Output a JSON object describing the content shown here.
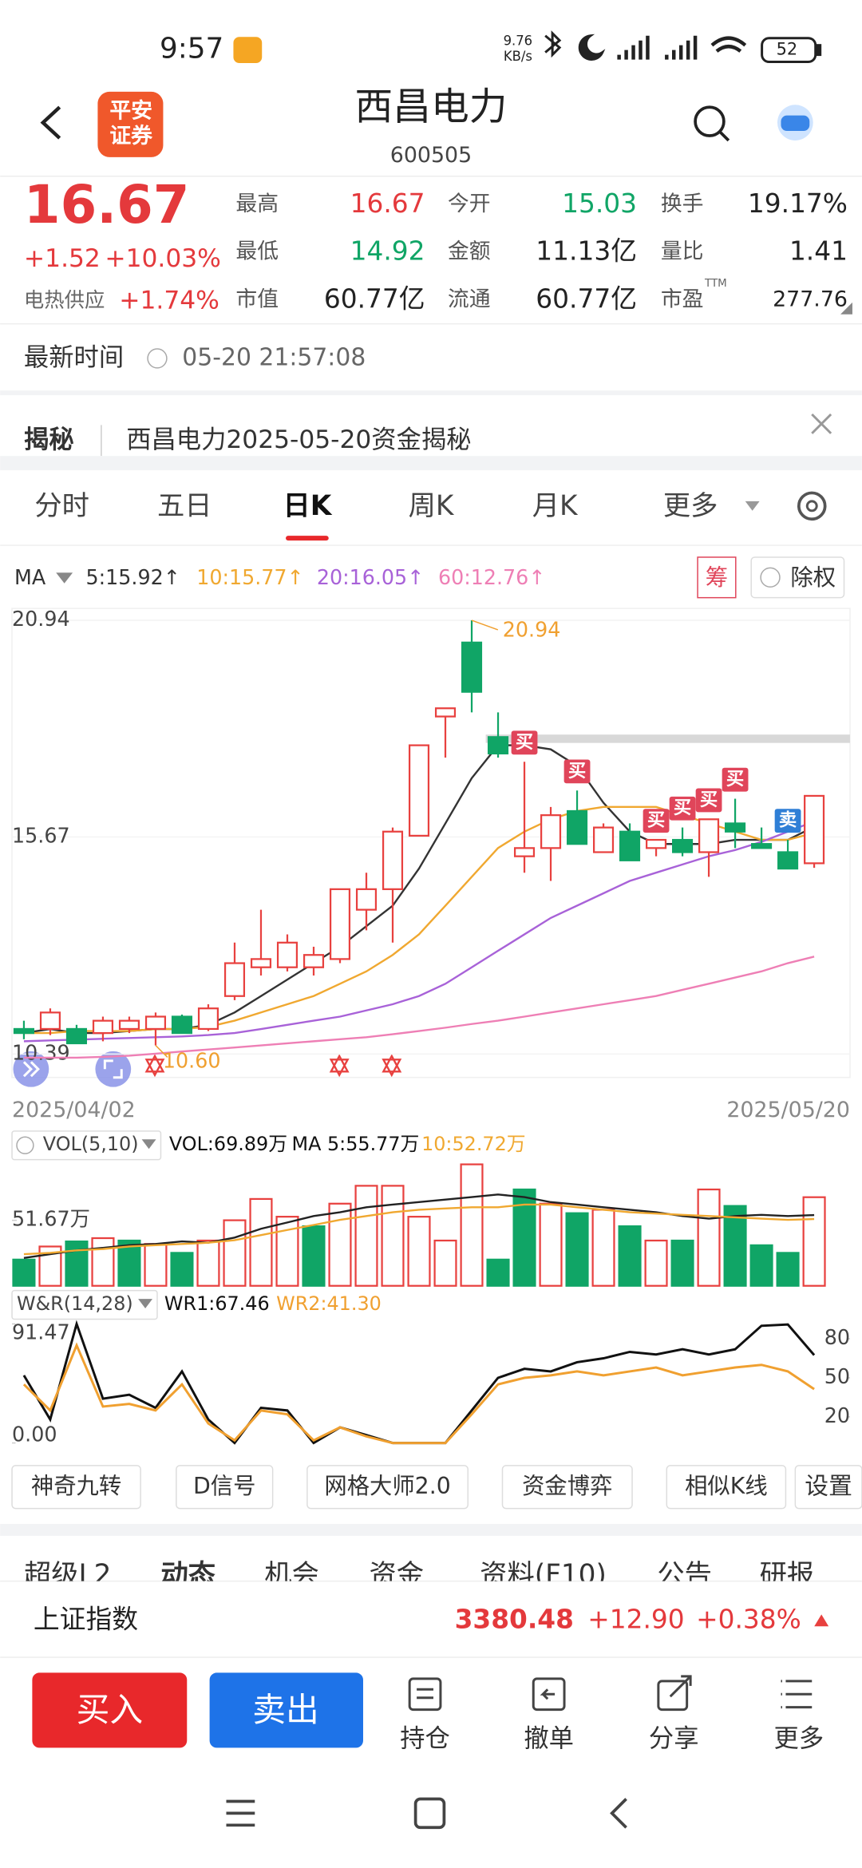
{
  "status_bar": {
    "time": "9:57",
    "net_speed": "9.76",
    "net_unit": "KB/s",
    "battery": "52"
  },
  "header": {
    "logo": [
      "平安",
      "证券"
    ],
    "title": "西昌电力",
    "code": "600505"
  },
  "quote": {
    "price": "16.67",
    "change": "+1.52",
    "change_pct": "+10.03%",
    "sector": "电热供应",
    "sector_pct": "+1.74%",
    "fields": [
      {
        "label": "最高",
        "value": "16.67",
        "color": "#e4393c"
      },
      {
        "label": "今开",
        "value": "15.03",
        "color": "#10a566"
      },
      {
        "label": "换手",
        "value": "19.17%",
        "color": "#222"
      },
      {
        "label": "最低",
        "value": "14.92",
        "color": "#10a566"
      },
      {
        "label": "金额",
        "value": "11.13亿",
        "color": "#222"
      },
      {
        "label": "量比",
        "value": "1.41",
        "color": "#222"
      },
      {
        "label": "市值",
        "value": "60.77亿",
        "color": "#222"
      },
      {
        "label": "流通",
        "value": "60.77亿",
        "color": "#222"
      },
      {
        "label": "市盈",
        "value": "277.76",
        "color": "#222"
      }
    ],
    "pe_note": "TTM"
  },
  "update": {
    "label": "最新时间",
    "time": "05-20 21:57:08"
  },
  "reveal": {
    "label": "揭秘",
    "text": "西昌电力2025-05-20资金揭秘"
  },
  "tabs": {
    "items": [
      "分时",
      "五日",
      "日K",
      "周K",
      "月K",
      "更多"
    ],
    "active": 2
  },
  "chart_controls": {
    "ma": "MA",
    "chips": "筹",
    "adjust": "除权"
  },
  "chart_data": [
    {
      "type": "candlestick",
      "categories": [
        "2025/04/02",
        null,
        null,
        null,
        null,
        null,
        null,
        null,
        null,
        null,
        null,
        null,
        null,
        null,
        null,
        null,
        null,
        null,
        null,
        null,
        null,
        null,
        null,
        null,
        null,
        null,
        null,
        null,
        null,
        null,
        "2025/05/20"
      ],
      "open": [
        11.0,
        11.0,
        11.0,
        10.9,
        11.0,
        11.0,
        11.3,
        11.0,
        11.8,
        12.5,
        12.5,
        12.5,
        12.7,
        13.9,
        14.4,
        15.7,
        18.6,
        20.4,
        18.1,
        15.2,
        15.4,
        16.3,
        15.3,
        15.8,
        15.4,
        15.6,
        15.3,
        16.0,
        15.5,
        15.3,
        15.03
      ],
      "high": [
        11.2,
        11.5,
        11.1,
        11.3,
        11.3,
        11.4,
        11.35,
        11.6,
        13.1,
        13.9,
        13.3,
        13.0,
        14.4,
        14.8,
        15.9,
        17.9,
        18.8,
        20.94,
        18.7,
        17.5,
        16.4,
        16.8,
        16.0,
        16.0,
        15.6,
        15.9,
        16.1,
        16.6,
        15.9,
        15.6,
        16.67
      ],
      "low": [
        10.75,
        10.85,
        10.65,
        10.7,
        10.9,
        10.6,
        10.9,
        10.95,
        11.7,
        12.3,
        12.4,
        12.3,
        12.6,
        13.4,
        13.1,
        15.7,
        17.6,
        18.7,
        17.6,
        14.8,
        14.6,
        15.5,
        15.3,
        15.1,
        15.2,
        15.2,
        14.7,
        15.4,
        15.4,
        14.9,
        14.92
      ],
      "close": [
        10.9,
        11.4,
        10.65,
        11.2,
        11.2,
        11.3,
        10.9,
        11.5,
        12.6,
        12.7,
        13.1,
        12.8,
        14.4,
        14.4,
        15.8,
        17.9,
        18.8,
        19.2,
        17.7,
        15.4,
        16.2,
        15.5,
        15.9,
        15.1,
        15.6,
        15.3,
        16.1,
        15.8,
        15.4,
        14.9,
        16.67
      ],
      "up_color": "#e8413f",
      "down_color": "#10a566",
      "ylim": [
        9.82,
        21.23
      ],
      "yticks": [
        20.94,
        15.67,
        10.39
      ],
      "grid": true,
      "high_mark": 20.94,
      "low_mark": {
        "value": 10.6,
        "label": "10.60"
      },
      "series": [
        {
          "name": "5:15.92↑",
          "color": "#333333",
          "values": [
            10.9,
            11.0,
            10.9,
            10.9,
            10.95,
            11.0,
            11.0,
            11.1,
            11.4,
            11.8,
            12.2,
            12.6,
            13.0,
            13.5,
            14.0,
            14.9,
            16.0,
            17.1,
            17.9,
            17.9,
            17.8,
            17.4,
            16.5,
            15.8,
            15.5,
            15.5,
            15.5,
            15.6,
            15.6,
            15.6,
            15.92
          ]
        },
        {
          "name": "10:15.77↑",
          "color": "#f0a830",
          "values": [
            10.9,
            10.9,
            10.95,
            10.95,
            10.95,
            11.0,
            11.0,
            11.05,
            11.2,
            11.4,
            11.6,
            11.8,
            12.1,
            12.4,
            12.8,
            13.3,
            14.0,
            14.7,
            15.4,
            15.8,
            16.1,
            16.3,
            16.4,
            16.4,
            16.4,
            16.2,
            16.0,
            15.8,
            15.6,
            15.6,
            15.77
          ]
        },
        {
          "name": "20:16.05↑",
          "color": "#a862d8",
          "values": [
            10.7,
            10.72,
            10.74,
            10.76,
            10.78,
            10.8,
            10.82,
            10.85,
            10.9,
            11.0,
            11.1,
            11.2,
            11.3,
            11.45,
            11.6,
            11.8,
            12.1,
            12.5,
            12.9,
            13.3,
            13.7,
            14.0,
            14.3,
            14.6,
            14.8,
            15.0,
            15.2,
            15.35,
            15.55,
            15.8,
            16.05
          ]
        },
        {
          "name": "60:12.76↑",
          "color": "#ee7fb5",
          "values": [
            10.3,
            10.3,
            10.3,
            10.32,
            10.35,
            10.4,
            10.45,
            10.5,
            10.55,
            10.6,
            10.65,
            10.7,
            10.75,
            10.8,
            10.87,
            10.95,
            11.03,
            11.12,
            11.2,
            11.3,
            11.4,
            11.5,
            11.6,
            11.7,
            11.8,
            11.95,
            12.1,
            12.25,
            12.4,
            12.6,
            12.76
          ]
        }
      ],
      "signals": [
        null,
        null,
        null,
        null,
        null,
        null,
        null,
        null,
        null,
        null,
        null,
        null,
        null,
        null,
        null,
        null,
        null,
        null,
        null,
        {
          "label": "买",
          "color": "#e0455a"
        },
        null,
        {
          "label": "买",
          "color": "#e0455a"
        },
        null,
        null,
        {
          "label": "买",
          "color": "#e0455a"
        },
        {
          "label": "买",
          "color": "#e0455a"
        },
        {
          "label": "买",
          "color": "#e0455a"
        },
        {
          "label": "买",
          "color": "#e0455a"
        },
        null,
        {
          "label": "卖",
          "color": "#2f7fd6"
        },
        null
      ]
    },
    {
      "type": "bar",
      "title": "VOL(5,10)",
      "legend": "VOL:69.89万",
      "values": [
        20.7,
        31,
        35,
        37.6,
        35.7,
        33,
        26,
        35.7,
        51.7,
        68.5,
        54.5,
        47,
        64.8,
        78.9,
        78.9,
        54.5,
        35.7,
        95.8,
        20.7,
        76,
        64.8,
        57.3,
        60,
        47,
        35.7,
        35.7,
        76,
        63,
        32,
        26,
        69.89
      ],
      "colors": [
        "#10a566",
        "#e8413f",
        "#10a566",
        "#e8413f",
        "#10a566",
        "#e8413f",
        "#10a566",
        "#e8413f",
        "#e8413f",
        "#e8413f",
        "#e8413f",
        "#10a566",
        "#e8413f",
        "#e8413f",
        "#e8413f",
        "#e8413f",
        "#e8413f",
        "#e8413f",
        "#10a566",
        "#10a566",
        "#e8413f",
        "#10a566",
        "#e8413f",
        "#10a566",
        "#e8413f",
        "#10a566",
        "#e8413f",
        "#10a566",
        "#10a566",
        "#10a566",
        "#e8413f"
      ],
      "ylim": [
        0,
        98.6
      ],
      "yticks": [
        {
          "value": 51.67,
          "label": "51.67万"
        }
      ],
      "series": [
        {
          "name": "MA 5:55.77万",
          "color": "#222222",
          "values": [
            22,
            25,
            28,
            30,
            32,
            33,
            35,
            34,
            38,
            45,
            50,
            55,
            58,
            62,
            64,
            66,
            68,
            70,
            72,
            70,
            66,
            64,
            62,
            60,
            58,
            55,
            53,
            55,
            56,
            55,
            55.77
          ]
        },
        {
          "name": "10:52.72万",
          "color": "#f0a830",
          "values": [
            25,
            26,
            28,
            29,
            31,
            32,
            33,
            34,
            36,
            40,
            44,
            48,
            52,
            55,
            58,
            60,
            61,
            62,
            62,
            64,
            64,
            62,
            60,
            58,
            57,
            56,
            55,
            54,
            53,
            52,
            52.72
          ]
        }
      ]
    },
    {
      "type": "line",
      "title": "W&R(14,28)",
      "ylim": [
        0,
        91.47
      ],
      "yticks": [
        91.47,
        {
          "value": 0,
          "label": "0.00"
        }
      ],
      "y2lim": [
        0,
        91.47
      ],
      "y2ticks": [
        80,
        50,
        20
      ],
      "series": [
        {
          "name": "WR1:67.46",
          "color": "#111111",
          "values": [
            52,
            18,
            91.47,
            34,
            37,
            27,
            55,
            18,
            0,
            27,
            25,
            0,
            12,
            6,
            0,
            0,
            0,
            25,
            50,
            57,
            55,
            62,
            65,
            70,
            68,
            72,
            68,
            72,
            90,
            91,
            67.46
          ]
        },
        {
          "name": "WR2:41.30",
          "color": "#f0a030",
          "values": [
            45,
            25,
            75,
            28,
            30,
            25,
            45,
            15,
            2,
            25,
            22,
            2,
            12,
            5,
            0,
            0,
            0,
            22,
            45,
            50,
            52,
            55,
            52,
            55,
            58,
            52,
            55,
            58,
            60,
            55,
            41.3
          ]
        }
      ]
    }
  ],
  "tools": {
    "items": [
      "神奇九转",
      "D信号",
      "网格大师2.0",
      "资金博弈",
      "相似K线"
    ],
    "settings": "设置"
  },
  "sub_tabs": [
    "超级L2",
    "动态",
    "机会",
    "资金",
    "资料(F10)",
    "公告",
    "研报"
  ],
  "index": {
    "name": "上证指数",
    "value": "3380.48",
    "change": "+12.90",
    "change_pct": "+0.38%"
  },
  "trade": {
    "buy": "买入",
    "sell": "卖出",
    "actions": [
      "持仓",
      "撤单",
      "分享",
      "更多"
    ]
  }
}
